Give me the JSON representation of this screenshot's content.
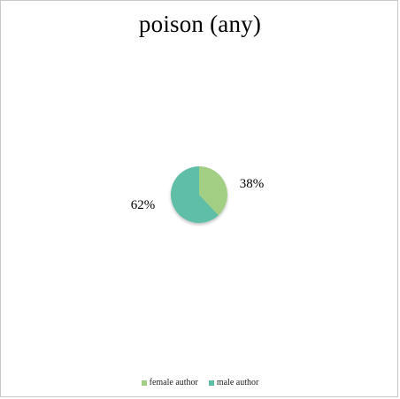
{
  "chart_data": {
    "type": "pie",
    "title": "poison (any)",
    "categories": [
      "female author",
      "male author"
    ],
    "values": [
      38,
      62
    ],
    "data_labels": [
      "38%",
      "62%"
    ],
    "colors": [
      "#a3cf85",
      "#5fbea6"
    ],
    "start": "12 o'clock",
    "direction": "clockwise",
    "legend_placement": "bottom",
    "legend": [
      "female author",
      "male author"
    ]
  }
}
